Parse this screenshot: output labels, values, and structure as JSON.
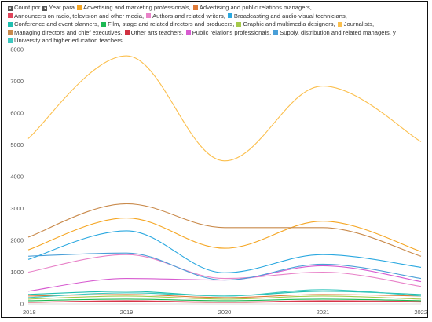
{
  "legend": {
    "controls": [
      {
        "label": "Count por",
        "icon": "sort-icon"
      },
      {
        "label": "Year para",
        "icon": "sort-icon"
      }
    ]
  },
  "chart_data": {
    "type": "line",
    "x": [
      "2018",
      "2019",
      "2020",
      "2021",
      "2022"
    ],
    "ylim": [
      0,
      8000
    ],
    "yticks": [
      0,
      1000,
      2000,
      3000,
      4000,
      5000,
      6000,
      7000,
      8000
    ],
    "grid": false,
    "legend_placement": "top",
    "series": [
      {
        "name": "Advertising and marketing professionals,",
        "color": "#f5a623",
        "values": [
          1700,
          2700,
          1750,
          2600,
          1650
        ]
      },
      {
        "name": "Advertising and public relations managers,",
        "color": "#e07b39",
        "values": [
          250,
          300,
          200,
          300,
          250
        ]
      },
      {
        "name": "Announcers on radio, television and other media,",
        "color": "#e0445a",
        "values": [
          50,
          100,
          60,
          100,
          80
        ]
      },
      {
        "name": "Authors and related writers,",
        "color": "#e882c8",
        "values": [
          1000,
          1550,
          800,
          1000,
          550
        ]
      },
      {
        "name": "Broadcasting and audio-visual technicians,",
        "color": "#2aa8e0",
        "values": [
          1400,
          2300,
          980,
          1550,
          1150
        ]
      },
      {
        "name": "Conference and event planners,",
        "color": "#1fbfb0",
        "values": [
          300,
          400,
          250,
          400,
          300
        ]
      },
      {
        "name": "Film, stage and related directors and producers,",
        "color": "#1db954",
        "values": [
          100,
          150,
          100,
          150,
          100
        ]
      },
      {
        "name": "Graphic and multimedia designers,",
        "color": "#a5c94a",
        "values": [
          150,
          250,
          150,
          250,
          150
        ]
      },
      {
        "name": "Journalists,",
        "color": "#fbbf4d",
        "values": [
          5200,
          7800,
          4500,
          6850,
          5100
        ]
      },
      {
        "name": "Managing directors and chief executives,",
        "color": "#c98a4b",
        "values": [
          2100,
          3150,
          2400,
          2400,
          1500
        ]
      },
      {
        "name": "Other arts teachers,",
        "color": "#d03040",
        "values": [
          50,
          80,
          50,
          80,
          60
        ]
      },
      {
        "name": "Public relations professionals,",
        "color": "#d75bd0",
        "values": [
          400,
          800,
          750,
          1200,
          700
        ]
      },
      {
        "name": "Supply, distribution and related managers, y",
        "color": "#4a9fd8",
        "values": [
          1500,
          1600,
          750,
          1250,
          800
        ]
      },
      {
        "name": "University and higher education teachers",
        "color": "#3ec8c0",
        "values": [
          200,
          350,
          250,
          450,
          250
        ]
      }
    ]
  }
}
